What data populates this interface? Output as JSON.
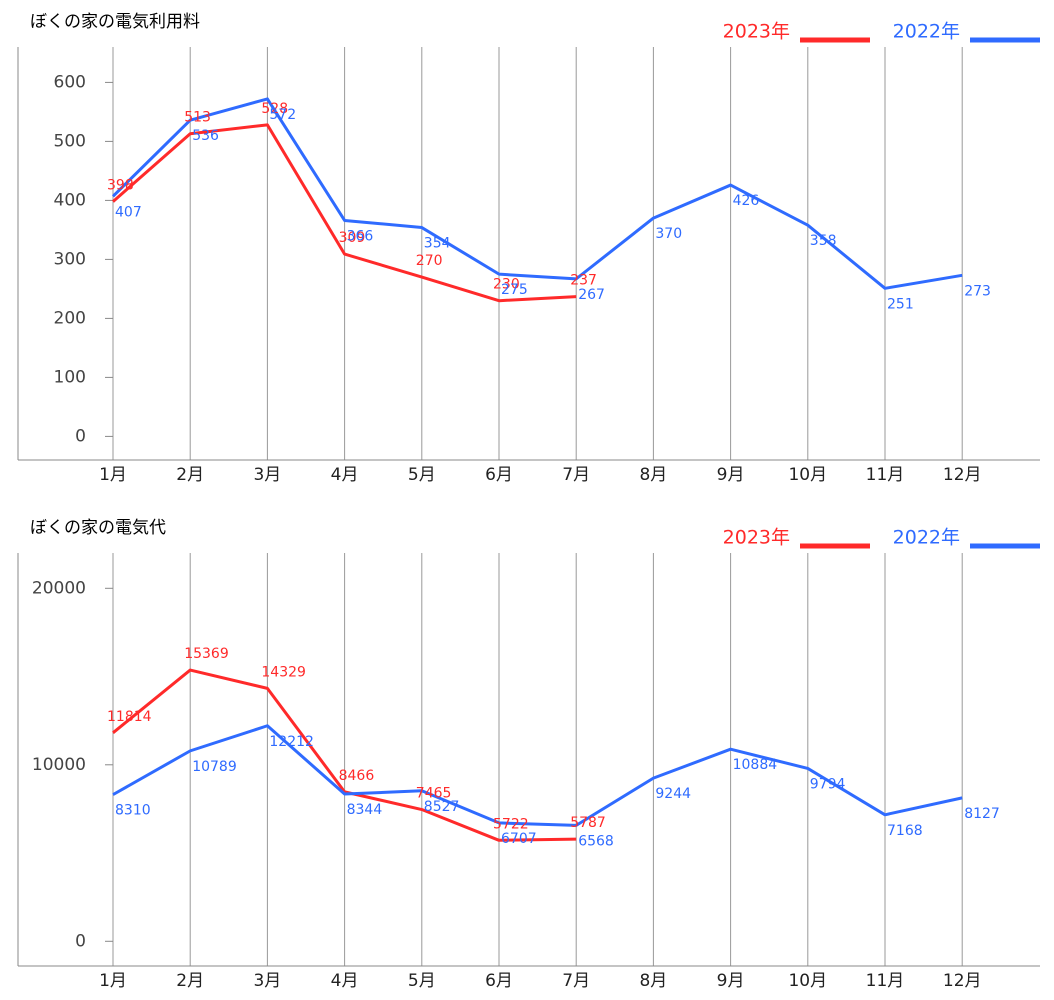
{
  "chart_data": [
    {
      "type": "line",
      "title": "ぼくの家の電気利用料",
      "categories": [
        "1月",
        "2月",
        "3月",
        "4月",
        "5月",
        "6月",
        "7月",
        "8月",
        "9月",
        "10月",
        "11月",
        "12月"
      ],
      "series": [
        {
          "name": "2023年",
          "color": "#ff2a2a",
          "values": [
            398,
            513,
            528,
            309,
            270,
            230,
            237,
            null,
            null,
            null,
            null,
            null
          ]
        },
        {
          "name": "2022年",
          "color": "#2f6bff",
          "values": [
            407,
            536,
            572,
            366,
            354,
            275,
            267,
            370,
            426,
            358,
            251,
            273
          ]
        }
      ],
      "ylim": [
        -40,
        660
      ],
      "yticks": [
        0,
        100,
        200,
        300,
        400,
        500,
        600
      ],
      "grid": true,
      "legend": "upper right"
    },
    {
      "type": "line",
      "title": "ぼくの家の電気代",
      "categories": [
        "1月",
        "2月",
        "3月",
        "4月",
        "5月",
        "6月",
        "7月",
        "8月",
        "9月",
        "10月",
        "11月",
        "12月"
      ],
      "series": [
        {
          "name": "2023年",
          "color": "#ff2a2a",
          "values": [
            11814,
            15369,
            14329,
            8466,
            7465,
            5722,
            5787,
            null,
            null,
            null,
            null,
            null
          ]
        },
        {
          "name": "2022年",
          "color": "#2f6bff",
          "values": [
            8310,
            10789,
            12212,
            8344,
            8527,
            6707,
            6568,
            9244,
            10884,
            9794,
            7168,
            8127
          ]
        }
      ],
      "ylim": [
        -1400,
        22000
      ],
      "yticks": [
        0,
        10000,
        20000
      ],
      "grid": true,
      "legend": "upper right"
    }
  ]
}
